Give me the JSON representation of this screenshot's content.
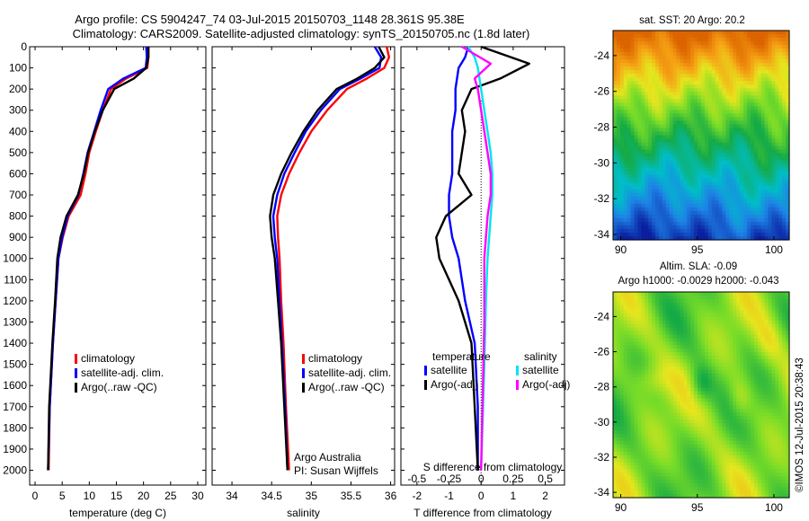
{
  "header": {
    "title_line1": "Argo profile: CS 5904247_74 03-Jul-2015 20150703_1148 28.361S 95.38E",
    "title_line2": "Climatology: CARS2009. Satellite-adjusted climatology: synTS_20150705.nc (1.8d later)"
  },
  "colors": {
    "climatology": "#ff0000",
    "satellite": "#0000ff",
    "argo": "#000000",
    "satellite_salinity": "#00e5ee",
    "argo_salinity": "#ff00ff"
  },
  "chart_data": [
    {
      "id": "temperature",
      "type": "line",
      "xlabel": "temperature (deg C)",
      "xlim": [
        -1,
        31.5
      ],
      "ylim": [
        2070,
        0
      ],
      "xticks": [
        0,
        5,
        10,
        15,
        20,
        25,
        30
      ],
      "yticks": [
        0,
        100,
        200,
        300,
        400,
        500,
        600,
        700,
        800,
        900,
        1000,
        1100,
        1200,
        1300,
        1400,
        1500,
        1600,
        1700,
        1800,
        1900,
        2000
      ],
      "legend": [
        "climatology",
        "satellite-adj. clim.",
        "Argo(..raw -QC)"
      ],
      "series": [
        {
          "name": "climatology",
          "color": "#ff0000",
          "x": [
            20.9,
            20.9,
            20.7,
            16.8,
            14,
            12.5,
            11.2,
            10,
            9.3,
            8.4,
            6.2,
            5.1,
            4.3,
            3.8,
            3.3,
            2.7,
            2.5
          ],
          "y": [
            0,
            50,
            100,
            150,
            200,
            300,
            400,
            500,
            600,
            700,
            800,
            900,
            1000,
            1200,
            1400,
            1700,
            2000
          ]
        },
        {
          "name": "satellite-adj. clim.",
          "color": "#0000ff",
          "x": [
            20.5,
            20.6,
            20.4,
            16.3,
            13.5,
            12.1,
            10.9,
            9.7,
            8.9,
            8.0,
            6.0,
            5.0,
            4.3,
            3.8,
            3.3,
            2.7,
            2.4
          ],
          "y": [
            0,
            50,
            100,
            150,
            200,
            300,
            400,
            500,
            600,
            700,
            800,
            900,
            1000,
            1200,
            1400,
            1700,
            2000
          ]
        },
        {
          "name": "Argo(..raw -QC)",
          "color": "#000000",
          "x": [
            20.9,
            20.9,
            20.5,
            18.2,
            14.6,
            12.5,
            11,
            9.8,
            9.0,
            7.9,
            5.8,
            4.7,
            4.1,
            3.7,
            3.2,
            2.6,
            2.4
          ],
          "y": [
            0,
            50,
            100,
            150,
            200,
            300,
            400,
            500,
            600,
            700,
            800,
            900,
            1000,
            1200,
            1400,
            1700,
            2000
          ]
        }
      ]
    },
    {
      "id": "salinity",
      "type": "line",
      "xlabel": "salinity",
      "xlim": [
        33.75,
        36.05
      ],
      "ylim": [
        2070,
        0
      ],
      "xticks": [
        34,
        34.5,
        35,
        35.5,
        36
      ],
      "legend": [
        "climatology",
        "satellite-adj. clim.",
        "Argo(..raw -QC)"
      ],
      "annotation": [
        "Argo Australia",
        "PI: Susan Wijffels"
      ],
      "series": [
        {
          "name": "climatology",
          "color": "#ff0000",
          "x": [
            35.95,
            35.98,
            35.92,
            35.7,
            35.45,
            35.2,
            35.0,
            34.85,
            34.72,
            34.62,
            34.57,
            34.58,
            34.6,
            34.62,
            34.65,
            34.68,
            34.72
          ],
          "y": [
            0,
            50,
            100,
            150,
            200,
            300,
            400,
            500,
            600,
            700,
            800,
            900,
            1000,
            1200,
            1400,
            1700,
            2000
          ]
        },
        {
          "name": "satellite-adj. clim.",
          "color": "#0000ff",
          "x": [
            35.8,
            35.88,
            35.86,
            35.62,
            35.36,
            35.12,
            34.93,
            34.79,
            34.66,
            34.57,
            34.52,
            34.54,
            34.57,
            34.6,
            34.63,
            34.67,
            34.7
          ],
          "y": [
            0,
            50,
            100,
            150,
            200,
            300,
            400,
            500,
            600,
            700,
            800,
            900,
            1000,
            1200,
            1400,
            1700,
            2000
          ]
        },
        {
          "name": "Argo(..raw -QC)",
          "color": "#000000",
          "x": [
            35.85,
            35.92,
            35.8,
            35.58,
            35.32,
            35.08,
            34.9,
            34.75,
            34.62,
            34.52,
            34.48,
            34.5,
            34.54,
            34.58,
            34.62,
            34.66,
            34.7
          ],
          "y": [
            0,
            50,
            100,
            150,
            200,
            300,
            400,
            500,
            600,
            700,
            800,
            900,
            1000,
            1200,
            1400,
            1700,
            2000
          ]
        }
      ]
    },
    {
      "id": "difference",
      "type": "line",
      "xlabel": "T difference from climatology",
      "xlabel_top": "S difference from climatology",
      "xlim": [
        -2.5,
        2.6
      ],
      "ylim": [
        2070,
        0
      ],
      "xticks": [
        -2,
        -1,
        0,
        1,
        2
      ],
      "xticks_s": [
        "-0.5",
        "-0.25",
        "0",
        "0.25",
        "0.5"
      ],
      "legend_titles": [
        "temperature",
        "salinity"
      ],
      "legend_left": [
        "satellite",
        "Argo(-adj)"
      ],
      "legend_right": [
        "satellite",
        "Argo(-adj)"
      ],
      "series": [
        {
          "name": "satellite",
          "group": "temperature",
          "color": "#0000ff",
          "x": [
            -0.4,
            -0.5,
            -0.7,
            -0.8,
            -0.8,
            -0.9,
            -0.9,
            -0.9,
            -1.0,
            -1.0,
            -0.9,
            -0.7,
            -0.6,
            -0.5,
            -0.2,
            -0.1,
            -0.1
          ],
          "y": [
            0,
            50,
            100,
            200,
            300,
            400,
            500,
            600,
            700,
            800,
            900,
            1000,
            1100,
            1200,
            1400,
            1700,
            2000
          ]
        },
        {
          "name": "Argo(-adj)",
          "group": "temperature",
          "color": "#000000",
          "x": [
            0.0,
            1.5,
            0.6,
            -0.3,
            -0.6,
            -0.5,
            -0.6,
            -0.7,
            -0.3,
            -1.1,
            -1.4,
            -1.3,
            -1.0,
            -0.7,
            -0.3,
            -0.2,
            -0.1
          ],
          "y": [
            0,
            80,
            150,
            200,
            300,
            400,
            500,
            600,
            700,
            800,
            900,
            1000,
            1100,
            1200,
            1400,
            1700,
            2000
          ]
        },
        {
          "name": "satellite",
          "group": "salinity",
          "color": "#00e5ee",
          "x": [
            -0.4,
            -0.2,
            -0.1,
            0.0,
            0.1,
            0.2,
            0.3,
            0.35,
            0.35,
            0.3,
            0.2,
            0.15,
            0.1,
            0.0
          ],
          "y": [
            0,
            50,
            100,
            200,
            300,
            400,
            500,
            600,
            700,
            800,
            1000,
            1200,
            1500,
            2000
          ]
        },
        {
          "name": "Argo(-adj)",
          "group": "salinity",
          "color": "#ff00ff",
          "x": [
            -0.6,
            0.3,
            -0.2,
            -0.1,
            0.0,
            0.1,
            0.2,
            0.3,
            0.3,
            0.2,
            0.1,
            0.1,
            0.0
          ],
          "y": [
            0,
            80,
            150,
            200,
            300,
            400,
            500,
            600,
            700,
            800,
            1000,
            1300,
            2000
          ]
        }
      ]
    },
    {
      "id": "sst_map",
      "type": "heatmap",
      "title": "sat. SST: 20 Argo: 20.2",
      "xlim": [
        89.5,
        101
      ],
      "ylim": [
        -34.3,
        -22.6
      ],
      "xticks": [
        90,
        95,
        100
      ],
      "yticks": [
        -24,
        -26,
        -28,
        -30,
        -32,
        -34
      ]
    },
    {
      "id": "sla_map",
      "type": "heatmap",
      "title_line1": "Altim. SLA: -0.09",
      "title_line2": "Argo h1000: -0.0029 h2000: -0.043",
      "xlim": [
        89.5,
        101
      ],
      "ylim": [
        -34.3,
        -22.6
      ],
      "xticks": [
        90,
        95,
        100
      ],
      "yticks": [
        -24,
        -26,
        -28,
        -30,
        -32,
        -34
      ]
    }
  ],
  "footer": {
    "credit": "©IMOS 12-Jul-2015 20:38:43"
  }
}
